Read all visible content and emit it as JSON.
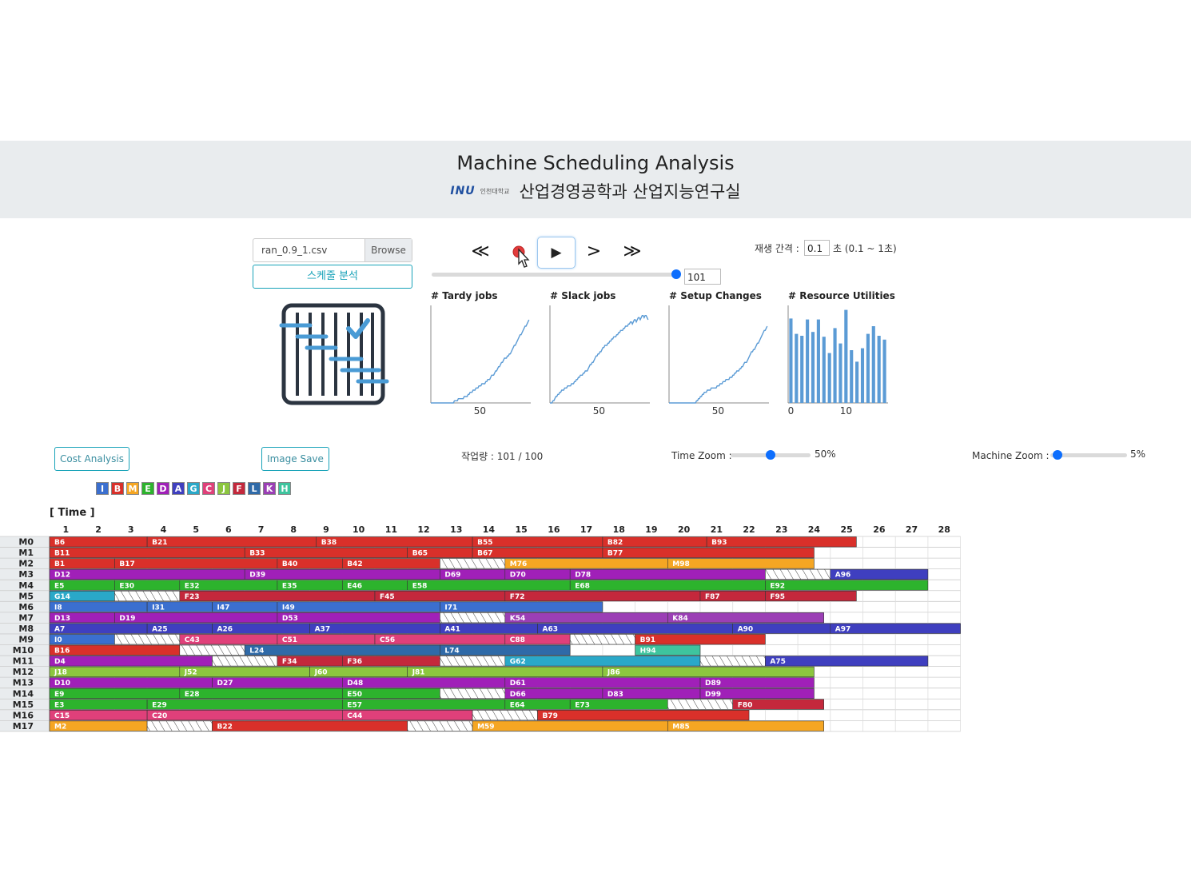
{
  "header": {
    "title": "Machine Scheduling Analysis",
    "logo_text": "INU",
    "logo_small": "인천대학교",
    "subtitle": "산업경영공학과 산업지능연구실"
  },
  "file": {
    "name": "ran_0.9_1.csv",
    "browse_label": "Browse",
    "analyze_label": "스케줄 분석"
  },
  "controls": {
    "first_icon": "double-chevron-left-icon",
    "record_icon": "record-icon",
    "play_icon": "play-icon",
    "next_icon": "chevron-right-icon",
    "last_icon": "double-chevron-right-icon",
    "first_glyph": "≪",
    "play_glyph": "▶",
    "next_glyph": ">",
    "last_glyph": "≫",
    "step_value": "101",
    "progress": 1.0,
    "interval_label": "재생 간격 :",
    "interval_value": "0.1",
    "interval_hint": "초 (0.1 ~ 1초)"
  },
  "mini_charts": [
    {
      "title": "# Tardy jobs",
      "type": "line",
      "tick": "50",
      "tick_x": 50,
      "xlim": [
        0,
        101
      ],
      "ylim": [
        0,
        45
      ],
      "y": [
        0,
        0,
        0,
        0,
        0,
        0,
        0,
        0,
        0,
        0,
        0,
        0,
        0,
        0,
        0,
        0,
        0,
        0,
        0,
        0,
        0,
        0,
        0,
        0,
        1,
        1,
        1,
        1,
        2,
        2,
        2,
        2,
        2,
        2,
        3,
        3,
        3,
        3,
        4,
        4,
        5,
        5,
        5,
        6,
        6,
        6,
        7,
        7,
        7,
        8,
        8,
        8,
        9,
        9,
        9,
        9,
        10,
        10,
        11,
        11,
        11,
        12,
        13,
        13,
        13,
        14,
        15,
        15,
        16,
        17,
        17,
        18,
        19,
        19,
        20,
        21,
        21,
        21,
        22,
        22,
        23,
        23,
        24,
        25,
        26,
        27,
        27,
        28,
        29,
        30,
        31,
        32,
        32,
        33,
        34,
        35,
        36,
        36,
        37,
        38,
        39
      ]
    },
    {
      "title": "# Slack jobs",
      "type": "line",
      "tick": "50",
      "tick_x": 50,
      "xlim": [
        0,
        101
      ],
      "ylim": [
        0,
        45
      ],
      "y": [
        0,
        0,
        0,
        1,
        1,
        2,
        3,
        3,
        4,
        4,
        5,
        5,
        6,
        6,
        6,
        7,
        7,
        7,
        8,
        8,
        8,
        8,
        9,
        9,
        9,
        10,
        10,
        11,
        11,
        12,
        12,
        13,
        13,
        13,
        14,
        14,
        15,
        15,
        15,
        16,
        17,
        18,
        18,
        19,
        19,
        20,
        21,
        22,
        22,
        23,
        23,
        24,
        24,
        25,
        26,
        26,
        27,
        27,
        27,
        28,
        28,
        29,
        29,
        30,
        30,
        31,
        31,
        31,
        32,
        32,
        33,
        33,
        34,
        34,
        34,
        35,
        35,
        36,
        36,
        36,
        37,
        37,
        38,
        38,
        37,
        38,
        39,
        39,
        38,
        39,
        40,
        40,
        39,
        40,
        41,
        41,
        40,
        41,
        41,
        40,
        39
      ]
    },
    {
      "title": "# Setup Changes",
      "type": "line",
      "tick": "50",
      "tick_x": 50,
      "xlim": [
        0,
        101
      ],
      "ylim": [
        0,
        45
      ],
      "y": [
        0,
        0,
        0,
        0,
        0,
        0,
        0,
        0,
        0,
        0,
        0,
        0,
        0,
        0,
        0,
        0,
        0,
        0,
        0,
        0,
        0,
        0,
        0,
        0,
        0,
        0,
        0,
        0,
        1,
        1,
        2,
        2,
        3,
        3,
        4,
        4,
        5,
        5,
        5,
        6,
        6,
        6,
        6,
        7,
        7,
        7,
        7,
        7,
        7,
        8,
        8,
        8,
        9,
        9,
        9,
        10,
        10,
        10,
        11,
        11,
        11,
        11,
        12,
        12,
        12,
        13,
        13,
        14,
        14,
        15,
        15,
        15,
        16,
        16,
        17,
        17,
        18,
        19,
        19,
        19,
        20,
        21,
        22,
        23,
        24,
        24,
        25,
        25,
        26,
        27,
        28,
        28,
        29,
        30,
        31,
        32,
        33,
        34,
        34,
        35,
        36
      ]
    },
    {
      "title": "# Resource Utilities",
      "type": "bar",
      "tick0": "0",
      "tick": "10",
      "xlim": [
        -0.5,
        17.5
      ],
      "ylim": [
        0,
        100
      ],
      "values": [
        88,
        72,
        70,
        87,
        74,
        87,
        69,
        52,
        78,
        62,
        97,
        55,
        43,
        57,
        72,
        80,
        70,
        66
      ]
    }
  ],
  "buttons": {
    "cost": "Cost Analysis",
    "save": "Image Save"
  },
  "workload": "작업량 : 101 / 100",
  "time_zoom": {
    "label": "Time Zoom :",
    "value": "50%",
    "level": 0.5
  },
  "machine_zoom": {
    "label": "Machine Zoom :",
    "value": "5%",
    "level": 0.05
  },
  "legend": [
    {
      "k": "I",
      "c": "#3b6fcf"
    },
    {
      "k": "B",
      "c": "#d9302a"
    },
    {
      "k": "M",
      "c": "#f5a623"
    },
    {
      "k": "E",
      "c": "#2db32d"
    },
    {
      "k": "D",
      "c": "#a020b8"
    },
    {
      "k": "A",
      "c": "#3f3fbf"
    },
    {
      "k": "G",
      "c": "#2aa8c8"
    },
    {
      "k": "C",
      "c": "#e0407a"
    },
    {
      "k": "J",
      "c": "#8cc63f"
    },
    {
      "k": "F",
      "c": "#c4283c"
    },
    {
      "k": "L",
      "c": "#2f6aa8"
    },
    {
      "k": "K",
      "c": "#9b3fb5"
    },
    {
      "k": "H",
      "c": "#3ec49e"
    }
  ],
  "colors": {
    "A": "#3f3fbf",
    "B": "#d9302a",
    "C": "#e0407a",
    "D": "#a020b8",
    "E": "#2db32d",
    "F": "#c4283c",
    "G": "#2aa8c8",
    "H": "#3ec49e",
    "I": "#3b6fcf",
    "J": "#8cc63f",
    "K": "#9b3fb5",
    "L": "#2f6aa8",
    "M": "#f5a623"
  },
  "gantt": {
    "time_label": "[ Time ]",
    "columns": [
      "1",
      "2",
      "3",
      "4",
      "5",
      "6",
      "7",
      "8",
      "9",
      "10",
      "11",
      "12",
      "13",
      "14",
      "15",
      "16",
      "17",
      "18",
      "19",
      "20",
      "21",
      "22",
      "23",
      "24",
      "25",
      "26",
      "27",
      "28"
    ],
    "machines": [
      {
        "name": "M0",
        "ops": [
          [
            "B6",
            0,
            3,
            "B"
          ],
          [
            "B21",
            3,
            8.2,
            "B"
          ],
          [
            "B38",
            8.2,
            13,
            "B"
          ],
          [
            "B55",
            13,
            17,
            "B"
          ],
          [
            "B82",
            17,
            20.2,
            "B"
          ],
          [
            "B93",
            20.2,
            24.8,
            "B"
          ]
        ]
      },
      {
        "name": "M1",
        "ops": [
          [
            "B11",
            0,
            6,
            "B"
          ],
          [
            "B33",
            6,
            11,
            "B"
          ],
          [
            "B65",
            11,
            13,
            "B"
          ],
          [
            "B67",
            13,
            17,
            "B"
          ],
          [
            "B77",
            17,
            23.5,
            "B"
          ]
        ]
      },
      {
        "name": "M2",
        "ops": [
          [
            "B1",
            0,
            2,
            "B"
          ],
          [
            "B17",
            2,
            7,
            "B"
          ],
          [
            "B40",
            7,
            9,
            "B"
          ],
          [
            "B42",
            9,
            12,
            "B"
          ],
          [
            "",
            12,
            14,
            "S"
          ],
          [
            "M76",
            14,
            19,
            "M"
          ],
          [
            "M98",
            19,
            23.5,
            "M"
          ]
        ]
      },
      {
        "name": "M3",
        "ops": [
          [
            "D12",
            0,
            6,
            "D"
          ],
          [
            "D39",
            6,
            12,
            "D"
          ],
          [
            "D69",
            12,
            14,
            "D"
          ],
          [
            "D70",
            14,
            16,
            "D"
          ],
          [
            "D78",
            16,
            22,
            "D"
          ],
          [
            "",
            22,
            24,
            "S"
          ],
          [
            "A96",
            24,
            27,
            "A"
          ]
        ]
      },
      {
        "name": "M4",
        "ops": [
          [
            "E5",
            0,
            2,
            "E"
          ],
          [
            "E30",
            2,
            4,
            "E"
          ],
          [
            "E32",
            4,
            7,
            "E"
          ],
          [
            "E35",
            7,
            9,
            "E"
          ],
          [
            "E46",
            9,
            11,
            "E"
          ],
          [
            "E58",
            11,
            16,
            "E"
          ],
          [
            "E68",
            16,
            22,
            "E"
          ],
          [
            "E92",
            22,
            27,
            "E"
          ]
        ]
      },
      {
        "name": "M5",
        "ops": [
          [
            "G14",
            0,
            2,
            "G"
          ],
          [
            "",
            2,
            4,
            "S"
          ],
          [
            "F23",
            4,
            10,
            "F"
          ],
          [
            "F45",
            10,
            14,
            "F"
          ],
          [
            "F72",
            14,
            20,
            "F"
          ],
          [
            "F87",
            20,
            22,
            "F"
          ],
          [
            "F95",
            22,
            24.8,
            "F"
          ]
        ]
      },
      {
        "name": "M6",
        "ops": [
          [
            "I8",
            0,
            3,
            "I"
          ],
          [
            "I31",
            3,
            5,
            "I"
          ],
          [
            "I47",
            5,
            7,
            "I"
          ],
          [
            "I49",
            7,
            12,
            "I"
          ],
          [
            "I71",
            12,
            17,
            "I"
          ]
        ]
      },
      {
        "name": "M7",
        "ops": [
          [
            "D13",
            0,
            2,
            "D"
          ],
          [
            "D19",
            2,
            7,
            "D"
          ],
          [
            "D53",
            7,
            12,
            "D"
          ],
          [
            "",
            12,
            14,
            "S"
          ],
          [
            "K54",
            14,
            19,
            "K"
          ],
          [
            "K84",
            19,
            23.8,
            "K"
          ]
        ]
      },
      {
        "name": "M8",
        "ops": [
          [
            "A7",
            0,
            3,
            "A"
          ],
          [
            "A25",
            3,
            5,
            "A"
          ],
          [
            "A26",
            5,
            8,
            "A"
          ],
          [
            "A37",
            8,
            12,
            "A"
          ],
          [
            "A41",
            12,
            15,
            "A"
          ],
          [
            "A63",
            15,
            21,
            "A"
          ],
          [
            "A90",
            21,
            24,
            "A"
          ],
          [
            "A97",
            24,
            28,
            "A"
          ]
        ]
      },
      {
        "name": "M9",
        "ops": [
          [
            "I0",
            0,
            2,
            "I"
          ],
          [
            "",
            2,
            4,
            "S"
          ],
          [
            "C43",
            4,
            7,
            "C"
          ],
          [
            "C51",
            7,
            10,
            "C"
          ],
          [
            "C56",
            10,
            14,
            "C"
          ],
          [
            "C88",
            14,
            16,
            "C"
          ],
          [
            "",
            16,
            18,
            "S"
          ],
          [
            "B91",
            18,
            22,
            "B"
          ]
        ]
      },
      {
        "name": "M10",
        "ops": [
          [
            "B16",
            0,
            4,
            "B"
          ],
          [
            "",
            4,
            6,
            "S"
          ],
          [
            "L24",
            6,
            12,
            "L"
          ],
          [
            "L74",
            12,
            16,
            "L"
          ],
          [
            "H94",
            18,
            20,
            "H"
          ]
        ]
      },
      {
        "name": "M11",
        "ops": [
          [
            "D4",
            0,
            5,
            "D"
          ],
          [
            "",
            5,
            7,
            "S"
          ],
          [
            "F34",
            7,
            9,
            "F"
          ],
          [
            "F36",
            9,
            12,
            "F"
          ],
          [
            "",
            12,
            14,
            "S"
          ],
          [
            "G62",
            14,
            20,
            "G"
          ],
          [
            "",
            20,
            22,
            "S"
          ],
          [
            "A75",
            22,
            27,
            "A"
          ]
        ]
      },
      {
        "name": "M12",
        "ops": [
          [
            "J18",
            0,
            4,
            "J"
          ],
          [
            "J52",
            4,
            8,
            "J"
          ],
          [
            "J60",
            8,
            11,
            "J"
          ],
          [
            "J81",
            11,
            17,
            "J"
          ],
          [
            "J86",
            17,
            23.5,
            "J"
          ]
        ]
      },
      {
        "name": "M13",
        "ops": [
          [
            "D10",
            0,
            5,
            "D"
          ],
          [
            "D27",
            5,
            9,
            "D"
          ],
          [
            "D48",
            9,
            14,
            "D"
          ],
          [
            "D61",
            14,
            20,
            "D"
          ],
          [
            "D89",
            20,
            23.5,
            "D"
          ]
        ]
      },
      {
        "name": "M14",
        "ops": [
          [
            "E9",
            0,
            4,
            "E"
          ],
          [
            "E28",
            4,
            9,
            "E"
          ],
          [
            "E50",
            9,
            12,
            "E"
          ],
          [
            "",
            12,
            14,
            "S"
          ],
          [
            "D66",
            14,
            17,
            "D"
          ],
          [
            "D83",
            17,
            20,
            "D"
          ],
          [
            "D99",
            20,
            23.5,
            "D"
          ]
        ]
      },
      {
        "name": "M15",
        "ops": [
          [
            "E3",
            0,
            3,
            "E"
          ],
          [
            "E29",
            3,
            9,
            "E"
          ],
          [
            "E57",
            9,
            14,
            "E"
          ],
          [
            "E64",
            14,
            16,
            "E"
          ],
          [
            "E73",
            16,
            19,
            "E"
          ],
          [
            "",
            19,
            21,
            "S"
          ],
          [
            "F80",
            21,
            23.8,
            "F"
          ]
        ]
      },
      {
        "name": "M16",
        "ops": [
          [
            "C15",
            0,
            3,
            "C"
          ],
          [
            "C20",
            3,
            9,
            "C"
          ],
          [
            "C44",
            9,
            13,
            "C"
          ],
          [
            "",
            13,
            15,
            "S"
          ],
          [
            "B79",
            15,
            21.5,
            "B"
          ]
        ]
      },
      {
        "name": "M17",
        "ops": [
          [
            "M2",
            0,
            3,
            "M"
          ],
          [
            "",
            3,
            5,
            "S"
          ],
          [
            "B22",
            5,
            11,
            "B"
          ],
          [
            "",
            11,
            13,
            "S"
          ],
          [
            "M59",
            13,
            19,
            "M"
          ],
          [
            "M85",
            19,
            23.8,
            "M"
          ]
        ]
      }
    ]
  }
}
